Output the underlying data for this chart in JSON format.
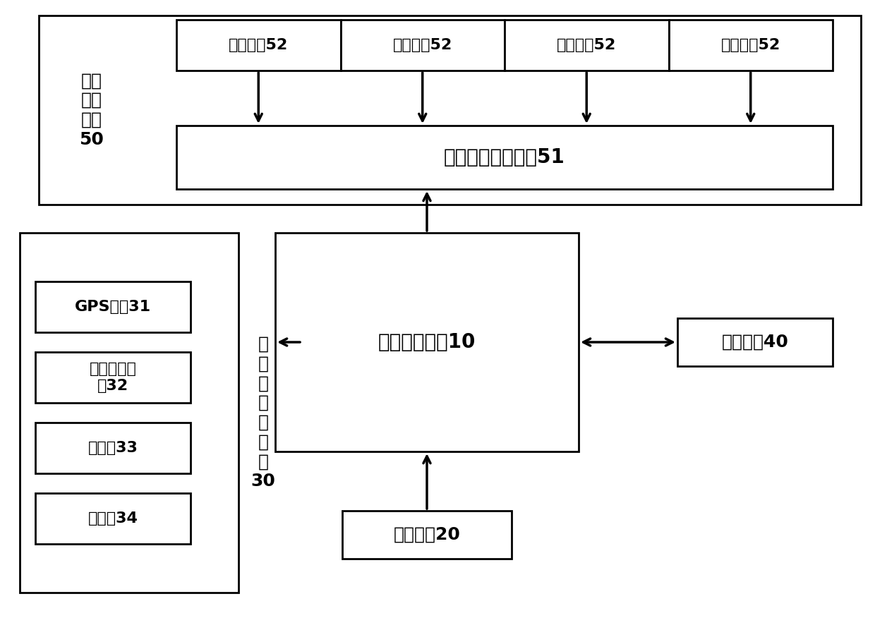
{
  "bg_color": "#ffffff",
  "line_color": "#000000",
  "figsize": [
    12.4,
    8.76
  ],
  "dpi": 100,
  "motor_drive_label": "电机\n驱动\n模块\n50",
  "esc_label": "四合一电机调速器51",
  "brushless_labels": [
    "无刷电机52",
    "无刷电机52",
    "无刷电机52",
    "无刷电机52"
  ],
  "controller_label": "飞行器控制器10",
  "power_label": "电源模块20",
  "comm_label": "通信模块40",
  "nav_group_label": "导\n航\n及\n测\n量\n模\n块\n30",
  "sensor_labels": [
    "GPS导航31",
    "三轴加速度\n计32",
    "陀螺仪33",
    "磁力计34"
  ]
}
